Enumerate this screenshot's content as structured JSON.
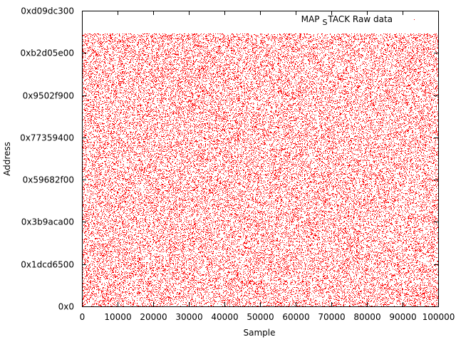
{
  "chart_data": {
    "type": "scatter",
    "xlabel": "Sample",
    "ylabel": "Address",
    "xlim": [
      0,
      100000
    ],
    "ylim": [
      0,
      3500000000
    ],
    "x_ticks": [
      0,
      10000,
      20000,
      30000,
      40000,
      50000,
      60000,
      70000,
      80000,
      90000,
      100000
    ],
    "x_tick_labels": [
      "0",
      "10000",
      "20000",
      "30000",
      "40000",
      "50000",
      "60000",
      "70000",
      "80000",
      "90000",
      "100000"
    ],
    "y_ticks": [
      0,
      500000000,
      1000000000,
      1500000000,
      2000000000,
      2500000000,
      3000000000,
      3500000000
    ],
    "y_tick_labels": [
      "0x0",
      "0x1dcd6500",
      "0x3b9aca00",
      "0x59682f00",
      "0x77359400",
      "0x9502f900",
      "0xb2d05e00",
      "0xd09dc300"
    ],
    "grid": false,
    "legend_position": "top-right",
    "series": [
      {
        "name": "MAP_STACK Raw data",
        "name_parts": [
          "MAP",
          "S",
          "TACK Raw data"
        ],
        "color": "#ff0000",
        "marker": "dot",
        "distribution": "uniform random",
        "x_range": [
          0,
          100000
        ],
        "y_range": [
          0,
          3230000000
        ],
        "approx_point_count": 100000
      }
    ]
  }
}
